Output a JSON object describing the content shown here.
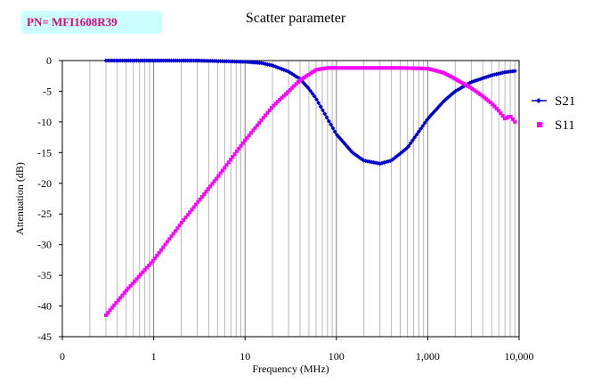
{
  "badge": {
    "text": "PN= MFI1608R39"
  },
  "chart_data": {
    "type": "line",
    "title": "Scatter parameter",
    "xlabel": "Frequency (MHz)",
    "ylabel": "Attenuation (dB)",
    "xscale": "log",
    "xlim": [
      0.1,
      10000
    ],
    "ylim": [
      -45,
      0
    ],
    "x_ticks": [
      "0",
      "1",
      "10",
      "100",
      "1,000",
      "10,000"
    ],
    "y_ticks": [
      "0",
      "-5",
      "-10",
      "-15",
      "-20",
      "-25",
      "-30",
      "-35",
      "-40",
      "-45"
    ],
    "grid": "vertical log gridlines",
    "legend_position": "right",
    "series": [
      {
        "name": "S21",
        "color": "#0000cc",
        "marker": "diamond",
        "points": [
          [
            0.3,
            0
          ],
          [
            1,
            0
          ],
          [
            3,
            0
          ],
          [
            10,
            -0.2
          ],
          [
            15,
            -0.4
          ],
          [
            20,
            -0.8
          ],
          [
            30,
            -1.8
          ],
          [
            40,
            -3.0
          ],
          [
            50,
            -4.6
          ],
          [
            60,
            -6.2
          ],
          [
            80,
            -9.5
          ],
          [
            100,
            -12.0
          ],
          [
            150,
            -15.0
          ],
          [
            200,
            -16.3
          ],
          [
            300,
            -16.8
          ],
          [
            400,
            -16.3
          ],
          [
            600,
            -14.2
          ],
          [
            1000,
            -9.5
          ],
          [
            1500,
            -6.6
          ],
          [
            2000,
            -5.0
          ],
          [
            3000,
            -3.5
          ],
          [
            5000,
            -2.4
          ],
          [
            7000,
            -1.9
          ],
          [
            9000,
            -1.7
          ]
        ]
      },
      {
        "name": "S11",
        "color": "#ff00ff",
        "marker": "square",
        "points": [
          [
            0.3,
            -41.5
          ],
          [
            0.5,
            -37.5
          ],
          [
            1,
            -32.5
          ],
          [
            2,
            -26.5
          ],
          [
            5,
            -19.0
          ],
          [
            10,
            -13.0
          ],
          [
            20,
            -7.5
          ],
          [
            30,
            -5.0
          ],
          [
            40,
            -3.2
          ],
          [
            60,
            -1.5
          ],
          [
            80,
            -1.2
          ],
          [
            100,
            -1.2
          ],
          [
            200,
            -1.2
          ],
          [
            500,
            -1.2
          ],
          [
            1000,
            -1.3
          ],
          [
            1500,
            -2.0
          ],
          [
            2000,
            -3.0
          ],
          [
            3000,
            -4.5
          ],
          [
            4000,
            -5.8
          ],
          [
            5000,
            -7.0
          ],
          [
            6000,
            -8.2
          ],
          [
            7000,
            -9.5
          ],
          [
            8000,
            -9.0
          ],
          [
            9000,
            -10.0
          ]
        ]
      }
    ]
  }
}
